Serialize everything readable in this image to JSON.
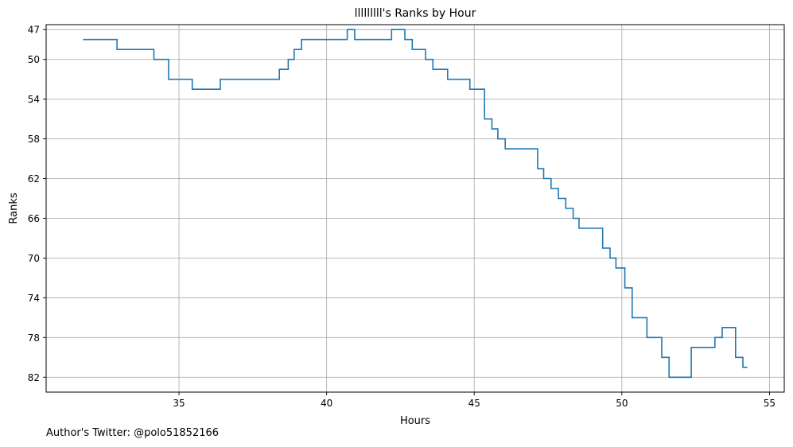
{
  "chart_data": {
    "type": "line",
    "title": "lllllllll's Ranks by Hour",
    "xlabel": "Hours",
    "ylabel": "Ranks",
    "xlim": [
      30.5,
      55.5
    ],
    "ylim": [
      83.5,
      46.5
    ],
    "x_ticks": [
      35,
      40,
      45,
      50,
      55
    ],
    "y_ticks": [
      47,
      50,
      54,
      58,
      62,
      66,
      70,
      74,
      78,
      82
    ],
    "y_inverted": true,
    "grid": true,
    "step": "post",
    "line_color": "#1f77b4",
    "series": [
      {
        "x": [
          31.75,
          32.9,
          34.15,
          34.65,
          35.45,
          36.4,
          38.4,
          38.7,
          38.9,
          39.15,
          40.7,
          40.95,
          42.2,
          42.65,
          42.9,
          43.35,
          43.6,
          44.1,
          44.85,
          45.35,
          45.6,
          45.8,
          46.05,
          47.15,
          47.35,
          47.6,
          47.85,
          48.1,
          48.35,
          48.55,
          49.35,
          49.6,
          49.8,
          50.1,
          50.35,
          50.85,
          51.35,
          51.6,
          52.35,
          53.15,
          53.4,
          53.85,
          54.1,
          54.25
        ],
        "y": [
          48,
          49,
          50,
          52,
          53,
          52,
          51,
          50,
          49,
          48,
          47,
          48,
          47,
          48,
          49,
          50,
          51,
          52,
          53,
          56,
          57,
          58,
          59,
          61,
          62,
          63,
          64,
          65,
          66,
          67,
          69,
          70,
          71,
          73,
          76,
          78,
          80,
          82,
          79,
          78,
          77,
          80,
          81,
          81
        ]
      }
    ]
  },
  "footer": {
    "author_note": "Author's Twitter: @polo51852166"
  }
}
